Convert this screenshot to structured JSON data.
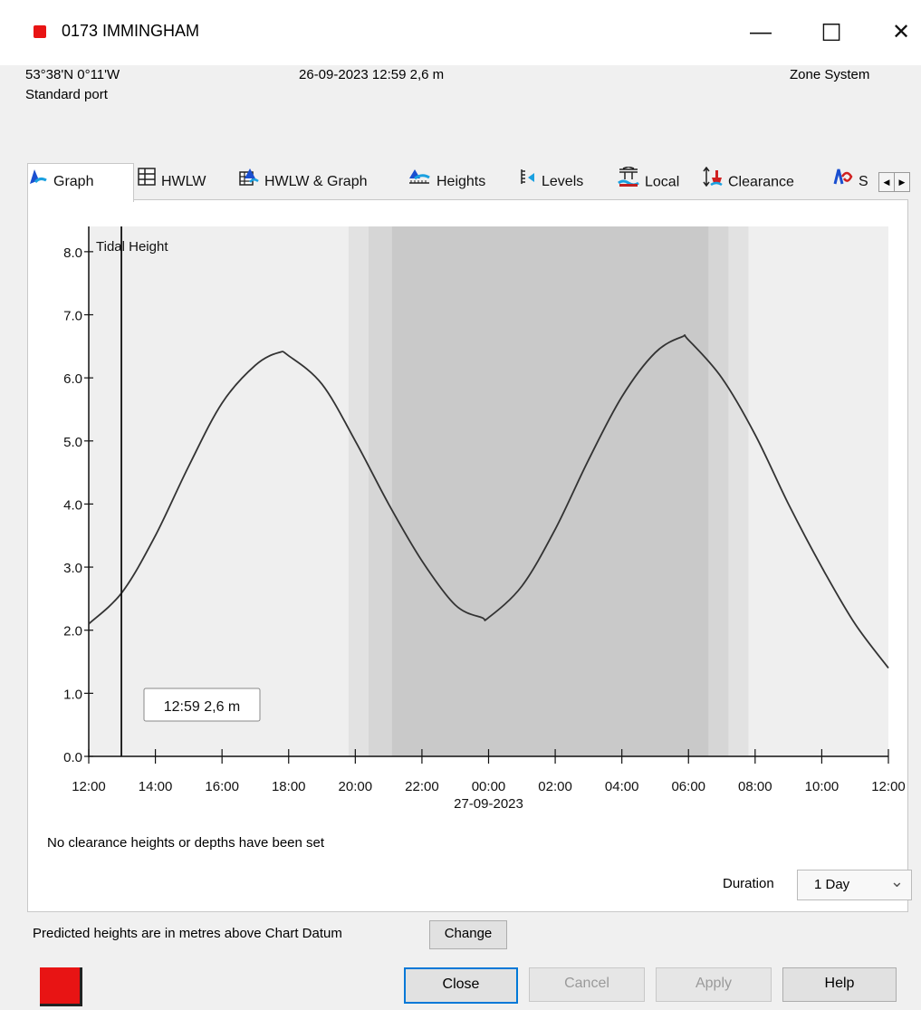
{
  "window": {
    "title": "0173  IMMINGHAM",
    "controls": {
      "minimize": "—",
      "maximize": "☐",
      "close": "✕"
    }
  },
  "station": {
    "coords": "53°38'N 0°11'W",
    "type": "Standard port",
    "current": "26-09-2023 12:59  2,6 m",
    "zone": "Zone  System"
  },
  "tabs": [
    {
      "label": "Graph",
      "icon": "tide-graph-icon",
      "active": true
    },
    {
      "label": "HWLW",
      "icon": "table-icon"
    },
    {
      "label": "HWLW & Graph",
      "icon": "table-graph-icon"
    },
    {
      "label": "Heights",
      "icon": "heights-icon"
    },
    {
      "label": "Levels",
      "icon": "levels-icon"
    },
    {
      "label": "Local",
      "icon": "local-icon"
    },
    {
      "label": "Clearance",
      "icon": "clearance-icon"
    },
    {
      "label": "S",
      "icon": "stream-icon"
    }
  ],
  "tab_scroll": {
    "left": "◀",
    "right": "▶"
  },
  "chart_data": {
    "type": "line",
    "ylabel": "Tidal Height",
    "ylim": [
      0,
      8.4
    ],
    "yticks": [
      "0.0",
      "1.0",
      "2.0",
      "3.0",
      "4.0",
      "5.0",
      "6.0",
      "7.0",
      "8.0"
    ],
    "xlim_hours": [
      0,
      24
    ],
    "xticks": [
      "12:00",
      "14:00",
      "16:00",
      "18:00",
      "20:00",
      "22:00",
      "00:00",
      "02:00",
      "04:00",
      "06:00",
      "08:00",
      "10:00",
      "12:00"
    ],
    "date_label": "27-09-2023",
    "cursor": {
      "x": 0.98,
      "label": "12:59 2,6 m"
    },
    "night_shading": {
      "twilight": [
        7.8,
        19.8
      ],
      "civil": [
        8.4,
        19.2
      ],
      "night": [
        9.1,
        18.6
      ]
    },
    "series": [
      {
        "x": [
          0,
          1,
          2,
          3,
          4,
          5,
          5.7,
          6,
          7,
          8,
          9,
          10,
          11,
          11.8,
          12,
          13,
          14,
          15,
          16,
          17,
          17.8,
          18,
          19,
          20,
          21,
          22,
          23,
          24
        ],
        "y": [
          2.1,
          2.6,
          3.5,
          4.6,
          5.6,
          6.2,
          6.4,
          6.35,
          5.9,
          5.0,
          4.0,
          3.1,
          2.4,
          2.2,
          2.2,
          2.7,
          3.6,
          4.7,
          5.7,
          6.4,
          6.65,
          6.6,
          6.0,
          5.1,
          4.0,
          3.0,
          2.1,
          1.4
        ]
      }
    ]
  },
  "clearance_note": "No clearance heights or depths have been set",
  "duration": {
    "label": "Duration",
    "value": "1 Day",
    "arrow": "⌄"
  },
  "datum": {
    "text": "Predicted heights are in metres above Chart Datum",
    "change": "Change"
  },
  "buttons": {
    "close": "Close",
    "cancel": "Cancel",
    "apply": "Apply",
    "help": "Help"
  },
  "colors": {
    "accent": "#0078d7",
    "station": "#e81414",
    "curve": "#333333"
  }
}
